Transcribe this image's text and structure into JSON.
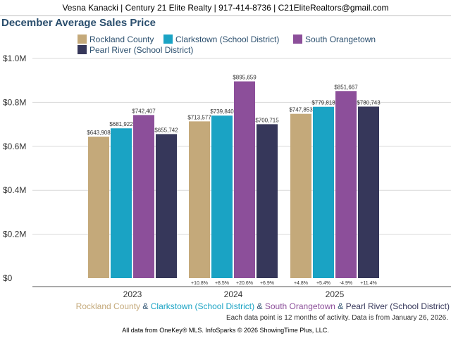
{
  "header": {
    "text": "Vesna Kanacki | Century 21 Elite Realty | 917-414-8736 | C21EliteRealtors@gmail.com"
  },
  "chart_data": {
    "type": "bar",
    "title": "December Average Sales Price",
    "categories": [
      "2023",
      "2024",
      "2025"
    ],
    "series": [
      {
        "name": "Rockland County",
        "color": "#c4a97a",
        "values": [
          643908,
          713577,
          747853
        ],
        "value_labels": [
          "$643,908",
          "$713,577",
          "$747,853"
        ],
        "changes": [
          "",
          "+10.8%",
          "+4.8%"
        ]
      },
      {
        "name": "Clarkstown (School District)",
        "color": "#1aa3c4",
        "values": [
          681922,
          739840,
          779818
        ],
        "value_labels": [
          "$681,922",
          "$739,840",
          "$779,818"
        ],
        "changes": [
          "",
          "+8.5%",
          "+5.4%"
        ]
      },
      {
        "name": "South Orangetown",
        "color": "#8c4f9a",
        "values": [
          742407,
          895659,
          851667
        ],
        "value_labels": [
          "$742,407",
          "$895,659",
          "$851,667"
        ],
        "changes": [
          "",
          "+20.6%",
          "-4.9%"
        ]
      },
      {
        "name": "Pearl River (School District)",
        "color": "#36375a",
        "values": [
          655742,
          700715,
          780743
        ],
        "value_labels": [
          "$655,742",
          "$700,715",
          "$780,743"
        ],
        "changes": [
          "",
          "+6.9%",
          "+11.4%"
        ]
      }
    ],
    "yticks": [
      "$0",
      "$0.2M",
      "$0.4M",
      "$0.6M",
      "$0.8M",
      "$1.0M"
    ],
    "ylim": [
      0,
      1000000
    ],
    "grid": true,
    "legend": "top"
  },
  "footer": {
    "separator": "&",
    "note": "Each data point is 12 months of activity. Data is from January 26, 2026.",
    "credit": "All data from OneKey® MLS. InfoSparks © 2026 ShowingTime Plus, LLC."
  }
}
